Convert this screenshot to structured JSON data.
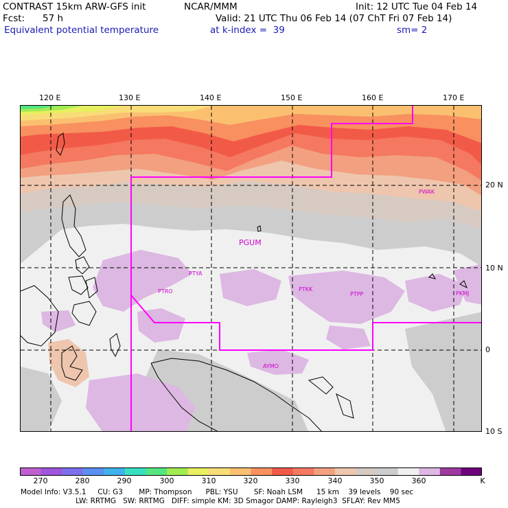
{
  "header": {
    "title_left": "CONTRAST 15km ARW-GFS init",
    "title_org": "NCAR/MMM",
    "init": "Init: 12 UTC Tue 04 Feb 14",
    "fcst_label": "Fcst:",
    "fcst_value": "57 h",
    "valid": "Valid: 21 UTC Thu 06 Feb 14 (07 ChT Fri 07 Feb 14)",
    "field": "Equivalent potential temperature",
    "level": "at k-index =  39",
    "smooth": "sm= 2"
  },
  "map": {
    "lon_labels": [
      "120 E",
      "130 E",
      "140 E",
      "150 E",
      "160 E",
      "170 E"
    ],
    "lat_labels": [
      "20 N",
      "10 N",
      "0",
      "10 S"
    ],
    "stations": [
      {
        "id": "PWAK"
      },
      {
        "id": "PGUM"
      },
      {
        "id": "PTYA"
      },
      {
        "id": "PTRO"
      },
      {
        "id": "PTKK"
      },
      {
        "id": "PTPP"
      },
      {
        "id": "PKMJ"
      },
      {
        "id": "AYMO"
      }
    ],
    "colors": {
      "t270": "#c060d0",
      "t275": "#a055dd",
      "t280": "#7c70ec",
      "t285": "#5b8ff2",
      "t290": "#3fb2ec",
      "t295": "#38e0c0",
      "t300": "#55e680",
      "t305": "#a2ec52",
      "t310": "#e8ef60",
      "t315": "#f8dc78",
      "t320": "#fac070",
      "t325": "#f89060",
      "t330": "#f25a48",
      "t335": "#f57860",
      "t340": "#f2a080",
      "t345": "#eec6ae",
      "t350": "#d6cac2",
      "t355": "#cdcdcd",
      "t360": "#f0f0f0",
      "t365": "#dcb8e2",
      "t370": "#9d3aa0",
      "t375": "#6e007c",
      "boundary": "#ff00ff",
      "coast": "#000000"
    }
  },
  "colorbar": {
    "labels": [
      "270",
      "280",
      "290",
      "300",
      "310",
      "320",
      "330",
      "340",
      "350",
      "360"
    ],
    "unit": "K",
    "colors": [
      "#c060d0",
      "#a055dd",
      "#7c70ec",
      "#5b8ff2",
      "#3fb2ec",
      "#38e0c0",
      "#55e680",
      "#a2ec52",
      "#e8ef60",
      "#f8dc78",
      "#fac070",
      "#f89060",
      "#f25a48",
      "#f57860",
      "#f2a080",
      "#eec6ae",
      "#d6cac2",
      "#cdcdcd",
      "#f0f0f0",
      "#dcb8e2",
      "#9d3aa0",
      "#6e007c"
    ]
  },
  "footer": {
    "line1": "Model Info: V3.5.1     CU: G3       MP: Thompson      PBL: YSU       SF: Noah LSM      15 km    39 levels    90 sec",
    "line2": "                        LW: RRTMG   SW: RRTMG   DIFF: simple KM: 3D Smagor DAMP: Rayleigh3  SFLAY: Rev MM5"
  }
}
